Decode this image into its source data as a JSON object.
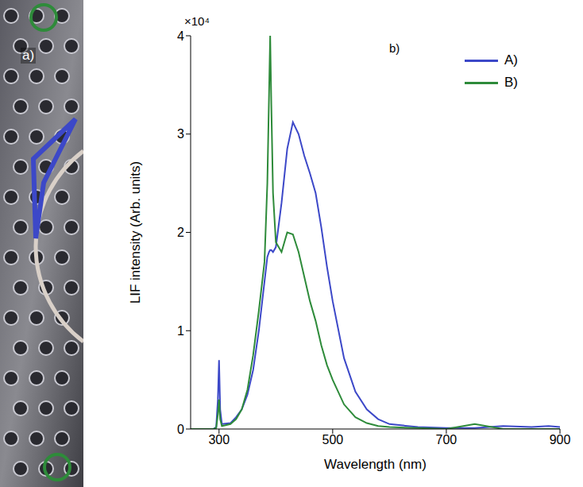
{
  "panel_labels": [
    "a)",
    "b)"
  ],
  "chart_data": {
    "type": "line",
    "x_label": "Wavelength (nm)",
    "y_label": "LIF intensity (Arb. units)",
    "annotations": [
      "×10⁴"
    ],
    "x": [
      250,
      290,
      295,
      298,
      300,
      302,
      305,
      320,
      330,
      340,
      350,
      360,
      370,
      375,
      380,
      385,
      388,
      390,
      392,
      395,
      400,
      410,
      420,
      430,
      440,
      450,
      460,
      470,
      480,
      490,
      500,
      520,
      540,
      560,
      580,
      600,
      650,
      700,
      750,
      800,
      850,
      880,
      900
    ],
    "series": [
      {
        "name": "A)",
        "color": "#3c48c8",
        "values": [
          0,
          0,
          0.02,
          0.3,
          0.7,
          0.2,
          0.05,
          0.06,
          0.12,
          0.2,
          0.35,
          0.6,
          1.0,
          1.25,
          1.5,
          1.75,
          1.8,
          1.82,
          1.82,
          1.8,
          1.85,
          2.3,
          2.85,
          3.12,
          3.0,
          2.78,
          2.6,
          2.4,
          2.05,
          1.65,
          1.3,
          0.72,
          0.38,
          0.2,
          0.1,
          0.05,
          0.02,
          0.01,
          0.01,
          0.03,
          0.02,
          0.03,
          0.02
        ]
      },
      {
        "name": "B)",
        "color": "#2e8b3a",
        "values": [
          0,
          0,
          0.01,
          0.15,
          0.3,
          0.1,
          0.03,
          0.05,
          0.1,
          0.2,
          0.4,
          0.75,
          1.2,
          1.45,
          1.7,
          2.5,
          3.4,
          4.0,
          3.3,
          2.4,
          1.9,
          1.8,
          2.0,
          1.98,
          1.8,
          1.55,
          1.3,
          1.1,
          0.85,
          0.65,
          0.5,
          0.25,
          0.12,
          0.06,
          0.03,
          0.02,
          0.01,
          0.0,
          0.05,
          0.0,
          0,
          0,
          0
        ]
      }
    ],
    "xlim": [
      250,
      900
    ],
    "xticks": [
      300,
      500,
      700,
      900
    ],
    "ylim": [
      0,
      4
    ],
    "yticks": [
      0,
      1,
      2,
      3,
      4
    ],
    "legend": "upper right",
    "grid": false
  }
}
